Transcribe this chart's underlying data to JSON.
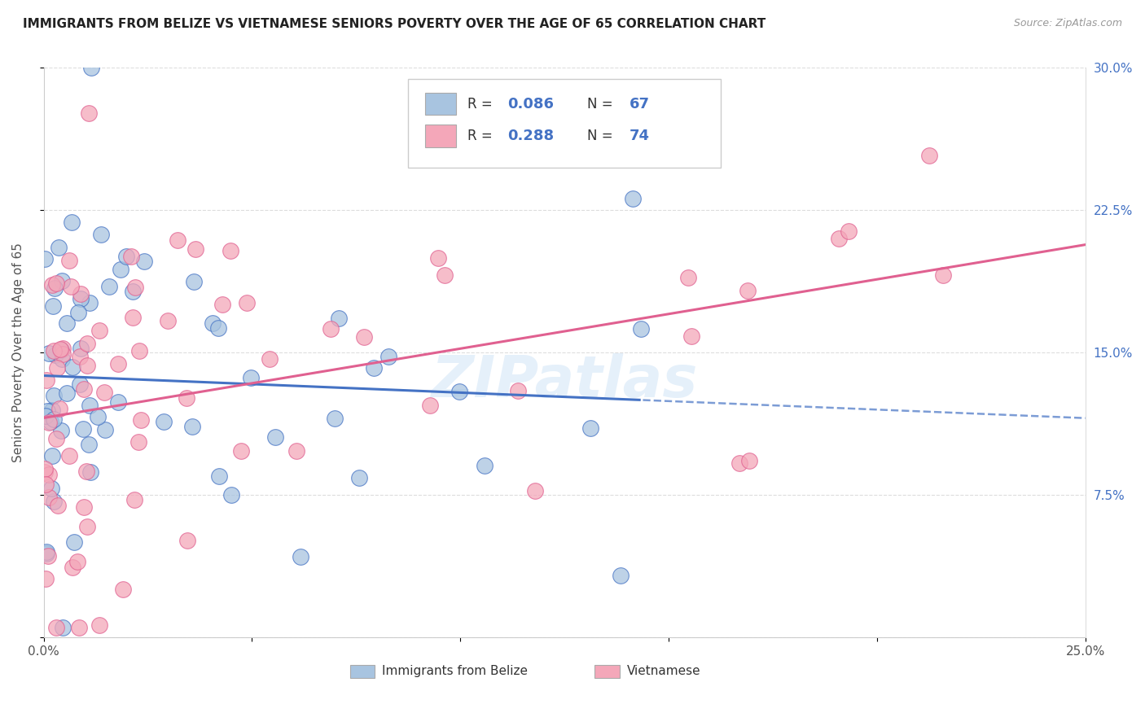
{
  "title": "IMMIGRANTS FROM BELIZE VS VIETNAMESE SENIORS POVERTY OVER THE AGE OF 65 CORRELATION CHART",
  "source": "Source: ZipAtlas.com",
  "ylabel": "Seniors Poverty Over the Age of 65",
  "legend_label1": "Immigrants from Belize",
  "legend_label2": "Vietnamese",
  "r1": 0.086,
  "n1": 67,
  "r2": 0.288,
  "n2": 74,
  "color1": "#a8c4e0",
  "color2": "#f4a7b9",
  "line_color1": "#4472c4",
  "line_color2": "#e06090",
  "xmin": 0.0,
  "xmax": 0.25,
  "ymin": 0.0,
  "ymax": 0.3,
  "watermark": "ZIPatlas"
}
